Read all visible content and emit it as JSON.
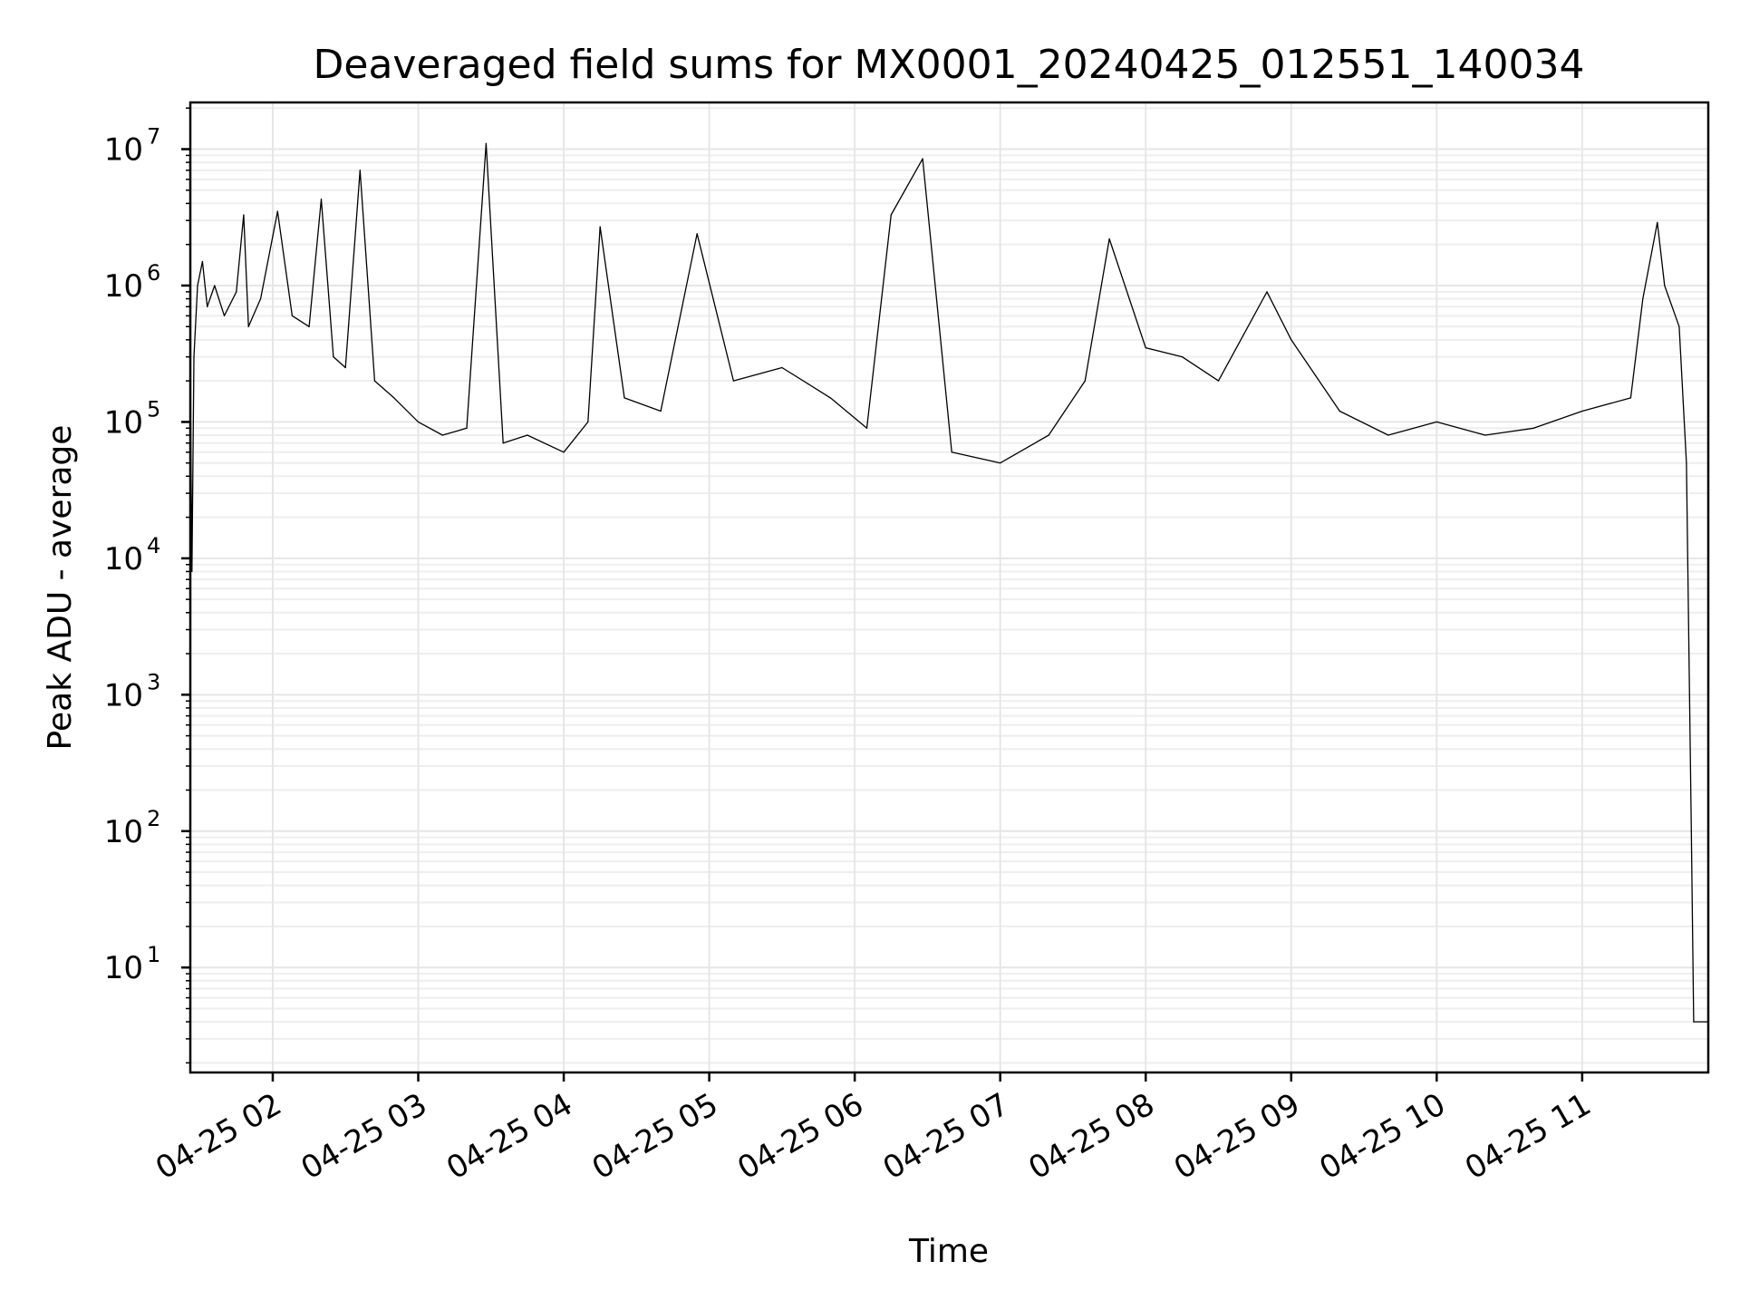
{
  "chart_data": {
    "type": "line",
    "title": "Deaveraged field sums for MX0001_20240425_012551_140034",
    "xlabel": "Time",
    "ylabel": "Peak ADU - average",
    "yscale": "log",
    "ylim": [
      1.7,
      22000000
    ],
    "xlim": [
      "2024-04-25 01:26",
      "2024-04-25 11:52"
    ],
    "grid": true,
    "yticks": [
      {
        "value": 10,
        "base": "10",
        "exp": "1"
      },
      {
        "value": 100,
        "base": "10",
        "exp": "2"
      },
      {
        "value": 1000,
        "base": "10",
        "exp": "3"
      },
      {
        "value": 10000,
        "base": "10",
        "exp": "4"
      },
      {
        "value": 100000,
        "base": "10",
        "exp": "5"
      },
      {
        "value": 1000000,
        "base": "10",
        "exp": "6"
      },
      {
        "value": 10000000,
        "base": "10",
        "exp": "7"
      }
    ],
    "xticks": [
      {
        "time": "2024-04-25 02:00",
        "label": "04-25 02"
      },
      {
        "time": "2024-04-25 03:00",
        "label": "04-25 03"
      },
      {
        "time": "2024-04-25 04:00",
        "label": "04-25 04"
      },
      {
        "time": "2024-04-25 05:00",
        "label": "04-25 05"
      },
      {
        "time": "2024-04-25 06:00",
        "label": "04-25 06"
      },
      {
        "time": "2024-04-25 07:00",
        "label": "04-25 07"
      },
      {
        "time": "2024-04-25 08:00",
        "label": "04-25 08"
      },
      {
        "time": "2024-04-25 09:00",
        "label": "04-25 09"
      },
      {
        "time": "2024-04-25 10:00",
        "label": "04-25 10"
      },
      {
        "time": "2024-04-25 11:00",
        "label": "04-25 11"
      }
    ],
    "series": [
      {
        "color": "#000000",
        "points": [
          [
            "2024-04-25 01:25:51",
            1.7
          ],
          [
            "2024-04-25 01:26:10",
            100000
          ],
          [
            "2024-04-25 01:26:40",
            8000
          ],
          [
            "2024-04-25 01:27:30",
            300000
          ],
          [
            "2024-04-25 01:29:00",
            1000000
          ],
          [
            "2024-04-25 01:31:00",
            1500000
          ],
          [
            "2024-04-25 01:33:00",
            700000
          ],
          [
            "2024-04-25 01:36:00",
            1000000
          ],
          [
            "2024-04-25 01:40:00",
            600000
          ],
          [
            "2024-04-25 01:45:00",
            900000
          ],
          [
            "2024-04-25 01:48:00",
            3300000
          ],
          [
            "2024-04-25 01:50:00",
            500000
          ],
          [
            "2024-04-25 01:55:00",
            800000
          ],
          [
            "2024-04-25 02:02:00",
            3500000
          ],
          [
            "2024-04-25 02:08:00",
            600000
          ],
          [
            "2024-04-25 02:15:00",
            500000
          ],
          [
            "2024-04-25 02:20:00",
            4300000
          ],
          [
            "2024-04-25 02:25:00",
            300000
          ],
          [
            "2024-04-25 02:30:00",
            250000
          ],
          [
            "2024-04-25 02:36:00",
            7000000
          ],
          [
            "2024-04-25 02:42:00",
            200000
          ],
          [
            "2024-04-25 02:50:00",
            150000
          ],
          [
            "2024-04-25 03:00:00",
            100000
          ],
          [
            "2024-04-25 03:10:00",
            80000
          ],
          [
            "2024-04-25 03:20:00",
            90000
          ],
          [
            "2024-04-25 03:28:00",
            11000000
          ],
          [
            "2024-04-25 03:35:00",
            70000
          ],
          [
            "2024-04-25 03:45:00",
            80000
          ],
          [
            "2024-04-25 04:00:00",
            60000
          ],
          [
            "2024-04-25 04:10:00",
            100000
          ],
          [
            "2024-04-25 04:15:00",
            2700000
          ],
          [
            "2024-04-25 04:25:00",
            150000
          ],
          [
            "2024-04-25 04:40:00",
            120000
          ],
          [
            "2024-04-25 04:55:00",
            2400000
          ],
          [
            "2024-04-25 05:10:00",
            200000
          ],
          [
            "2024-04-25 05:30:00",
            250000
          ],
          [
            "2024-04-25 05:50:00",
            150000
          ],
          [
            "2024-04-25 06:05:00",
            90000
          ],
          [
            "2024-04-25 06:15:00",
            3300000
          ],
          [
            "2024-04-25 06:28:00",
            8500000
          ],
          [
            "2024-04-25 06:40:00",
            60000
          ],
          [
            "2024-04-25 07:00:00",
            50000
          ],
          [
            "2024-04-25 07:20:00",
            80000
          ],
          [
            "2024-04-25 07:35:00",
            200000
          ],
          [
            "2024-04-25 07:45:00",
            2200000
          ],
          [
            "2024-04-25 08:00:00",
            350000
          ],
          [
            "2024-04-25 08:15:00",
            300000
          ],
          [
            "2024-04-25 08:30:00",
            200000
          ],
          [
            "2024-04-25 08:50:00",
            900000
          ],
          [
            "2024-04-25 09:00:00",
            400000
          ],
          [
            "2024-04-25 09:20:00",
            120000
          ],
          [
            "2024-04-25 09:40:00",
            80000
          ],
          [
            "2024-04-25 10:00:00",
            100000
          ],
          [
            "2024-04-25 10:20:00",
            80000
          ],
          [
            "2024-04-25 10:40:00",
            90000
          ],
          [
            "2024-04-25 11:00:00",
            120000
          ],
          [
            "2024-04-25 11:20:00",
            150000
          ],
          [
            "2024-04-25 11:25:00",
            800000
          ],
          [
            "2024-04-25 11:31:00",
            2900000
          ],
          [
            "2024-04-25 11:34:00",
            1000000
          ],
          [
            "2024-04-25 11:40:00",
            500000
          ],
          [
            "2024-04-25 11:43:00",
            50000
          ],
          [
            "2024-04-25 11:45:00",
            100
          ],
          [
            "2024-04-25 11:46:00",
            4
          ],
          [
            "2024-04-25 11:52:00",
            4
          ]
        ]
      }
    ]
  }
}
